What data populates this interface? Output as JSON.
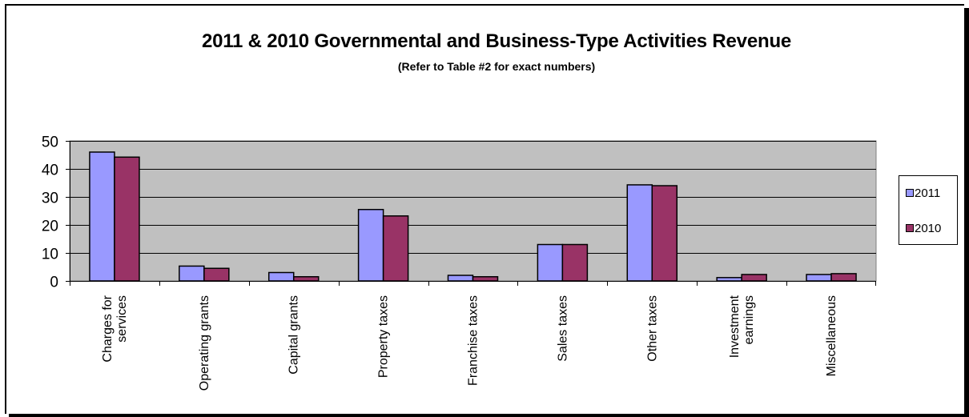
{
  "title": "2011 & 2010 Governmental and Business-Type Activities Revenue",
  "subtitle": "(Refer to Table #2 for exact numbers)",
  "colors": {
    "plot_bg": "#C0C0C0",
    "series_2011": "#9999FF",
    "series_2010": "#993366"
  },
  "chart_data": {
    "type": "bar",
    "title": "2011 & 2010 Governmental and Business-Type Activities Revenue",
    "subtitle": "(Refer to Table #2 for exact numbers)",
    "categories": [
      "Charges for services",
      "Operating grants",
      "Capital grants",
      "Property taxes",
      "Franchise taxes",
      "Sales taxes",
      "Other taxes",
      "Investment earnings",
      "Miscellaneous"
    ],
    "series": [
      {
        "name": "2011",
        "values": [
          46,
          5.3,
          3,
          25.5,
          2,
          13,
          34.3,
          1.2,
          2.3
        ]
      },
      {
        "name": "2010",
        "values": [
          44.2,
          4.5,
          1.5,
          23.2,
          1.5,
          13,
          34,
          2.3,
          2.6
        ]
      }
    ],
    "ylim": [
      0,
      50
    ],
    "yticks": [
      0,
      10,
      20,
      30,
      40,
      50
    ],
    "grid": true,
    "legend": "right"
  }
}
